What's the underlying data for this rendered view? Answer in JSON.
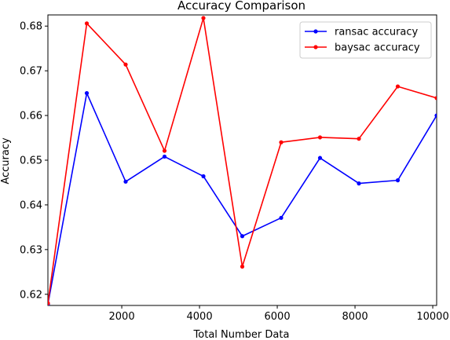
{
  "chart_data": {
    "type": "line",
    "title": "Accuracy Comparison",
    "xlabel": "Total Number Data",
    "ylabel": "Accuracy",
    "xlim": [
      100,
      10100
    ],
    "ylim": [
      0.6175,
      0.6825
    ],
    "xticks": [
      2000,
      4000,
      6000,
      8000,
      10000
    ],
    "xtick_labels": [
      "2000",
      "4000",
      "6000",
      "8000",
      "10000"
    ],
    "yticks": [
      0.62,
      0.63,
      0.64,
      0.65,
      0.66,
      0.67,
      0.68
    ],
    "ytick_labels": [
      "0.62",
      "0.63",
      "0.64",
      "0.65",
      "0.66",
      "0.67",
      "0.68"
    ],
    "grid": false,
    "legend_position": "top-right",
    "x": [
      100,
      1100,
      2100,
      3100,
      4100,
      5100,
      6100,
      7100,
      8100,
      9100,
      10100
    ],
    "series": [
      {
        "name": "ransac accuracy",
        "color": "#0000ff",
        "values": [
          0.6178,
          0.665,
          0.6452,
          0.6508,
          0.6464,
          0.633,
          0.6371,
          0.6505,
          0.6448,
          0.6455,
          0.66
        ]
      },
      {
        "name": "baysac accuracy",
        "color": "#ff0000",
        "values": [
          0.618,
          0.6806,
          0.6714,
          0.6521,
          0.6818,
          0.6262,
          0.654,
          0.6551,
          0.6548,
          0.6665,
          0.6639
        ]
      }
    ]
  }
}
